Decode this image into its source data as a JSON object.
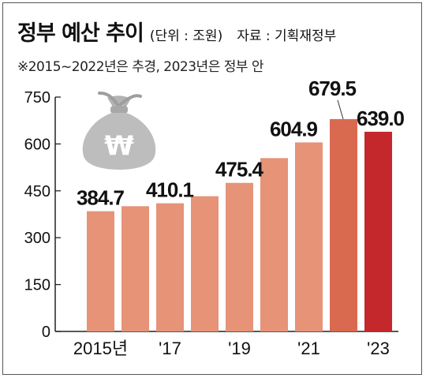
{
  "title": "정부 예산 추이",
  "unit": "(단위 : 조원)",
  "source": "자료 : 기획재정부",
  "note": "※2015~2022년은 추경, 2023년은 정부 안",
  "chart_data": {
    "type": "bar",
    "categories": [
      "2015",
      "2016",
      "2017",
      "2018",
      "2019",
      "2020",
      "2021",
      "2022",
      "2023"
    ],
    "x_tick_labels": [
      "2015년",
      "'17",
      "'19",
      "'21",
      "'23"
    ],
    "x_tick_index": [
      0,
      2,
      4,
      6,
      8
    ],
    "values": [
      384.7,
      400.7,
      410.1,
      432.7,
      475.4,
      554.7,
      604.9,
      679.5,
      639.0
    ],
    "value_labels": [
      "384.7",
      "",
      "410.1",
      "",
      "475.4",
      "",
      "604.9",
      "679.5",
      "639.0"
    ],
    "ylim": [
      0,
      750
    ],
    "yticks": [
      0,
      150,
      300,
      450,
      600,
      750
    ],
    "grid": false,
    "colors": [
      "#e69378",
      "#e69378",
      "#e69378",
      "#e69378",
      "#e69378",
      "#e69378",
      "#e69378",
      "#d96a50",
      "#c4282d"
    ],
    "icon": "money-bag-won-icon"
  }
}
